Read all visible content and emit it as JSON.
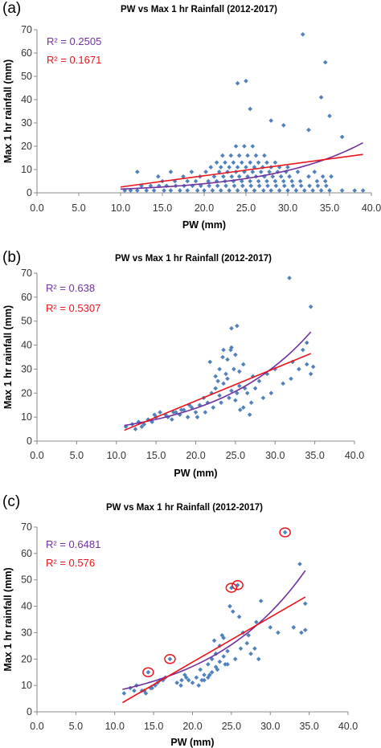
{
  "chart_data": [
    {
      "panel_label": "(a)",
      "type": "scatter",
      "title": "PW vs Max 1 hr Rainfall (2012-2017)",
      "xlabel": "PW (mm)",
      "ylabel": "Max 1 hr rainfall (mm)",
      "xlim": [
        0,
        40
      ],
      "ylim": [
        0,
        70
      ],
      "x_ticks": [
        "0.0",
        "5.0",
        "10.0",
        "15.0",
        "20.0",
        "25.0",
        "30.0",
        "35.0",
        "40.0"
      ],
      "y_ticks": [
        "0",
        "10",
        "20",
        "30",
        "40",
        "50",
        "60",
        "70"
      ],
      "grid": false,
      "point_color": "#4f81bd",
      "fit_colors": {
        "exponential": "#7030a0",
        "linear": "#e8141c"
      },
      "r2_labels": [
        "R² = 0.2505",
        "R² = 0.1671"
      ],
      "highlighted_points": [],
      "trendlines": [
        {
          "kind": "exponential",
          "color": "#7030a0",
          "x": [
            10,
            39
          ],
          "y": [
            1.6,
            21.5
          ]
        },
        {
          "kind": "linear",
          "color": "#e8141c",
          "x": [
            10,
            39
          ],
          "y": [
            2.5,
            16.5
          ]
        }
      ],
      "series": [
        {
          "x": [
            10.5,
            11.2,
            12.0,
            13.1,
            14.0,
            15.2,
            16.0,
            17.1,
            18.0,
            19.2,
            20.0,
            21.0,
            22.0,
            23.0,
            24.0,
            25.0,
            26.0,
            27.1,
            28.0,
            29.0,
            30.0,
            31.0,
            32.0,
            33.0,
            34.0,
            35.0,
            36.5,
            38.0,
            39.0,
            12.5,
            13.6,
            14.6,
            15.5,
            16.6,
            17.6,
            18.6,
            19.6,
            20.6,
            21.6,
            22.6,
            23.6,
            24.6,
            25.6,
            26.6,
            27.6,
            28.6,
            29.6,
            30.6,
            31.6,
            32.6,
            33.6,
            34.6,
            15.0,
            16.5,
            18.0,
            19.0,
            20.5,
            21.5,
            22.5,
            23.5,
            24.5,
            25.5,
            26.5,
            27.5,
            28.5,
            29.5,
            30.5,
            31.5,
            33.5,
            34.5,
            14.5,
            17.5,
            19.5,
            21.2,
            22.3,
            23.3,
            24.2,
            25.2,
            26.2,
            27.2,
            28.2,
            29.2,
            30.2,
            32.5,
            34.2,
            35.2,
            12.0,
            16.0,
            18.5,
            20.2,
            21.8,
            22.8,
            23.8,
            24.8,
            25.8,
            26.8,
            27.8,
            28.8,
            29.8,
            31.2,
            33.2,
            20.8,
            22.0,
            23.0,
            24.0,
            25.0,
            26.0,
            27.0,
            28.0,
            29.0,
            30.0,
            21.5,
            22.5,
            23.5,
            24.5,
            25.5,
            26.5,
            27.5,
            28.5,
            22.2,
            23.2,
            24.2,
            25.2,
            26.2,
            27.2,
            23.8,
            24.8,
            25.8,
            31.8,
            34.5,
            34.0,
            35.0,
            24.0,
            25.0,
            25.5,
            28.0,
            29.5,
            32.5,
            36.5
          ],
          "y": [
            1,
            1,
            1,
            1,
            1,
            1,
            1,
            1,
            1,
            1,
            1,
            1,
            1,
            1,
            1,
            1,
            1,
            1,
            1,
            1,
            1,
            1,
            1,
            1,
            1,
            1,
            1,
            1,
            1,
            3,
            3,
            3,
            3,
            3,
            3,
            3,
            3,
            3,
            3,
            3,
            3,
            3,
            3,
            3,
            3,
            3,
            3,
            3,
            3,
            3,
            3,
            3,
            5,
            5,
            5,
            5,
            5,
            5,
            5,
            5,
            5,
            5,
            5,
            5,
            5,
            5,
            5,
            5,
            5,
            5,
            7,
            7,
            7,
            7,
            7,
            7,
            7,
            7,
            7,
            7,
            7,
            7,
            7,
            7,
            7,
            7,
            9,
            9,
            9,
            9,
            9,
            9,
            9,
            9,
            9,
            9,
            9,
            9,
            9,
            9,
            9,
            11,
            11,
            11,
            11,
            11,
            11,
            11,
            11,
            11,
            11,
            13,
            13,
            13,
            13,
            13,
            13,
            13,
            13,
            16,
            16,
            16,
            16,
            16,
            16,
            20,
            20,
            20,
            68,
            56,
            41,
            33,
            47,
            48,
            36,
            31,
            29,
            27,
            24
          ]
        }
      ]
    },
    {
      "panel_label": "(b)",
      "type": "scatter",
      "title": "PW vs Max 1 hr Rainfall (2012-2017)",
      "xlabel": "PW (mm)",
      "ylabel": "Max 1 hr rainfall (mm)",
      "xlim": [
        0,
        40
      ],
      "ylim": [
        0,
        70
      ],
      "x_ticks": [
        "0.0",
        "5.0",
        "10.0",
        "15.0",
        "20.0",
        "25.0",
        "30.0",
        "35.0",
        "40.0"
      ],
      "y_ticks": [
        "0",
        "10",
        "20",
        "30",
        "40",
        "50",
        "60",
        "70"
      ],
      "grid": false,
      "point_color": "#4f81bd",
      "fit_colors": {
        "exponential": "#7030a0",
        "linear": "#e8141c"
      },
      "r2_labels": [
        "R² = 0.638",
        "R² = 0.5307"
      ],
      "highlighted_points": [],
      "trendlines": [
        {
          "kind": "exponential",
          "color": "#7030a0",
          "x": [
            11,
            34.5
          ],
          "y": [
            6.5,
            45.5
          ]
        },
        {
          "kind": "linear",
          "color": "#e8141c",
          "x": [
            11,
            34.5
          ],
          "y": [
            4.5,
            36.5
          ]
        }
      ],
      "series": [
        {
          "x": [
            11.2,
            12.0,
            12.8,
            13.5,
            14.0,
            14.5,
            15.0,
            13.2,
            12.4,
            14.8,
            15.5,
            16.5,
            17.0,
            17.5,
            18.0,
            18.5,
            19.0,
            19.5,
            20.0,
            20.5,
            21.0,
            21.5,
            22.0,
            22.5,
            23.0,
            23.5,
            24.0,
            24.5,
            25.0,
            25.5,
            26.0,
            26.5,
            27.0,
            27.5,
            28.0,
            29.0,
            30.0,
            31.0,
            32.0,
            33.0,
            34.0,
            34.5,
            20.2,
            21.2,
            22.2,
            23.2,
            24.2,
            25.2,
            26.2,
            22.8,
            23.8,
            24.8,
            21.8,
            23.4,
            24.4,
            25.6,
            26.8,
            28.5,
            29.5,
            19.2,
            18.2,
            17.2,
            16.2,
            23.0,
            24.0,
            25.0,
            26.0,
            23.5,
            24.5,
            22.5,
            25.5,
            27.2,
            24.5,
            25.2,
            31.8,
            34.5,
            34.0,
            34.8,
            33.5,
            32.2
          ],
          "y": [
            6,
            7,
            8,
            7,
            9,
            8,
            10,
            6,
            5,
            11,
            12,
            10,
            9,
            12,
            11,
            13,
            10,
            14,
            12,
            15,
            18,
            16,
            20,
            22,
            19,
            24,
            26,
            21,
            17,
            23,
            14,
            20,
            16,
            22,
            25,
            28,
            30,
            24,
            26,
            30,
            32,
            28,
            10,
            12,
            14,
            16,
            18,
            20,
            22,
            25,
            28,
            30,
            33,
            35,
            38,
            13,
            11,
            18,
            20,
            15,
            13,
            12,
            11,
            30,
            34,
            36,
            32,
            38,
            39,
            27,
            29,
            27,
            47,
            48,
            68,
            56,
            41,
            31,
            38,
            33
          ]
        }
      ]
    },
    {
      "panel_label": "(c)",
      "type": "scatter",
      "title": "PW vs Max 1 hr Rainfall (2012-2017)",
      "xlabel": "PW (mm)",
      "ylabel": "Max 1 hr rainfall (mm)",
      "xlim": [
        0,
        40
      ],
      "ylim": [
        0,
        70
      ],
      "x_ticks": [
        "0.0",
        "5.0",
        "10.0",
        "15.0",
        "20.0",
        "25.0",
        "30.0",
        "35.0",
        "40.0"
      ],
      "y_ticks": [
        "0",
        "10",
        "20",
        "30",
        "40",
        "50",
        "60",
        "70"
      ],
      "grid": false,
      "point_color": "#4f81bd",
      "fit_colors": {
        "exponential": "#7030a0",
        "linear": "#e8141c"
      },
      "r2_labels": [
        "R² = 0.6481",
        "R² = 0.576"
      ],
      "trendlines": [
        {
          "kind": "exponential",
          "color": "#7030a0",
          "x": [
            11,
            34.5
          ],
          "y": [
            8.5,
            53.5
          ]
        },
        {
          "kind": "linear",
          "color": "#e8141c",
          "x": [
            11,
            34.5
          ],
          "y": [
            3.5,
            43.5
          ]
        }
      ],
      "highlighted_points": [
        {
          "x": 14.3,
          "y": 15
        },
        {
          "x": 17.1,
          "y": 20
        },
        {
          "x": 25.0,
          "y": 47
        },
        {
          "x": 25.8,
          "y": 48
        },
        {
          "x": 31.9,
          "y": 68
        }
      ],
      "series": [
        {
          "x": [
            11.2,
            12.0,
            12.8,
            13.5,
            14.0,
            14.8,
            15.2,
            15.8,
            16.5,
            17.1,
            14.3,
            18.0,
            18.5,
            19.0,
            19.5,
            20.0,
            20.5,
            21.0,
            21.5,
            22.0,
            22.5,
            23.0,
            23.5,
            24.0,
            24.5,
            25.0,
            25.8,
            26.5,
            27.0,
            27.5,
            28.0,
            28.5,
            30.0,
            31.0,
            31.9,
            33.0,
            34.0,
            34.5,
            21.5,
            22.0,
            22.5,
            23.0,
            23.5,
            24.0,
            24.5,
            22.8,
            23.8,
            20.8,
            21.2,
            22.2,
            23.2,
            24.2,
            25.5,
            26.2,
            27.2,
            28.2,
            19.2,
            18.6,
            13.8,
            14.6,
            15.5,
            16.2,
            12.5,
            24.8,
            25.2,
            26.0,
            28.8,
            33.8,
            34.5
          ],
          "y": [
            7,
            9,
            10,
            8,
            7,
            9,
            10,
            12,
            13,
            20,
            15,
            11,
            10,
            14,
            12,
            11,
            13,
            16,
            14,
            18,
            20,
            22,
            25,
            28,
            18,
            47,
            48,
            30,
            26,
            22,
            24,
            20,
            32,
            30,
            68,
            32,
            30,
            31,
            12,
            13,
            15,
            17,
            19,
            21,
            23,
            27,
            29,
            10,
            12,
            14,
            16,
            18,
            20,
            24,
            29,
            34,
            13,
            12,
            8,
            9,
            11,
            12,
            8,
            40,
            38,
            36,
            42,
            56,
            41
          ]
        }
      ]
    }
  ]
}
